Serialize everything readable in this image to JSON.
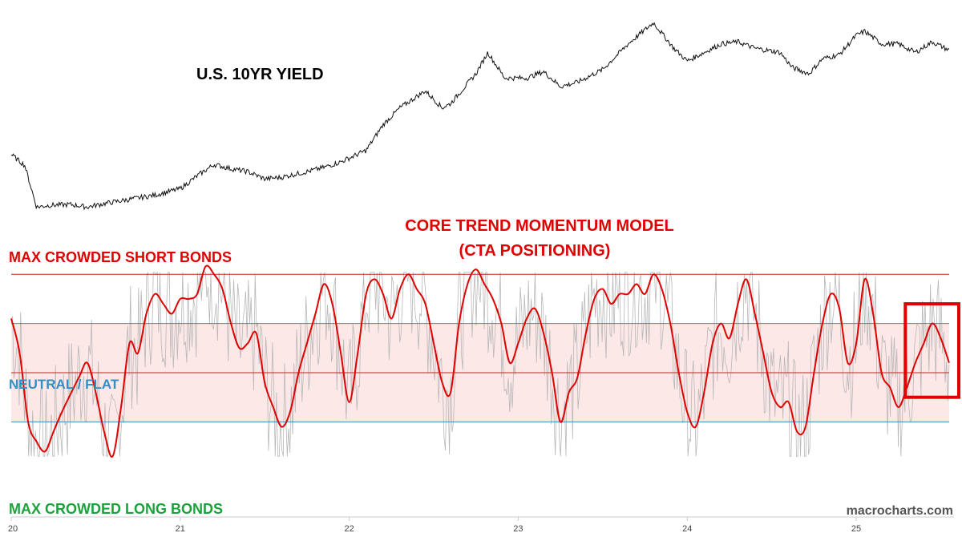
{
  "chart_data": {
    "type": "line",
    "watermark": "macrocharts.com",
    "colors": {
      "yield": "#111111",
      "model": "#e00000",
      "raw": "#b8b8b8",
      "band_fill": "#fde8e8",
      "red_rule": "#cc2222",
      "blue_rule": "#3b8bb8",
      "short_label": "#e00000",
      "neutral_label": "#2f8fc8",
      "long_label": "#1aa33a",
      "highlight": "#e00000"
    },
    "x_axis": {
      "min": 20.0,
      "max": 25.55,
      "ticks": [
        {
          "value": 20,
          "label": "20"
        },
        {
          "value": 21,
          "label": "21"
        },
        {
          "value": 22,
          "label": "22"
        },
        {
          "value": 23,
          "label": "23"
        },
        {
          "value": 24,
          "label": "24"
        },
        {
          "value": 25,
          "label": "25"
        }
      ]
    },
    "yield_panel": {
      "title": "U.S. 10YR YIELD",
      "ylim": [
        0.4,
        5.2
      ],
      "points": [
        [
          20.0,
          1.85
        ],
        [
          20.08,
          1.6
        ],
        [
          20.15,
          0.62
        ],
        [
          20.22,
          0.66
        ],
        [
          20.35,
          0.68
        ],
        [
          20.45,
          0.62
        ],
        [
          20.55,
          0.7
        ],
        [
          20.7,
          0.8
        ],
        [
          20.85,
          0.9
        ],
        [
          21.0,
          1.05
        ],
        [
          21.1,
          1.35
        ],
        [
          21.2,
          1.62
        ],
        [
          21.3,
          1.52
        ],
        [
          21.4,
          1.45
        ],
        [
          21.5,
          1.28
        ],
        [
          21.6,
          1.32
        ],
        [
          21.75,
          1.45
        ],
        [
          21.85,
          1.55
        ],
        [
          21.95,
          1.68
        ],
        [
          22.1,
          1.95
        ],
        [
          22.2,
          2.55
        ],
        [
          22.3,
          2.95
        ],
        [
          22.45,
          3.35
        ],
        [
          22.55,
          2.95
        ],
        [
          22.6,
          3.05
        ],
        [
          22.75,
          3.75
        ],
        [
          22.82,
          4.25
        ],
        [
          22.92,
          3.65
        ],
        [
          23.05,
          3.65
        ],
        [
          23.15,
          3.8
        ],
        [
          23.25,
          3.45
        ],
        [
          23.35,
          3.55
        ],
        [
          23.5,
          3.85
        ],
        [
          23.65,
          4.45
        ],
        [
          23.8,
          4.95
        ],
        [
          23.92,
          4.35
        ],
        [
          24.0,
          4.05
        ],
        [
          24.1,
          4.25
        ],
        [
          24.2,
          4.45
        ],
        [
          24.3,
          4.5
        ],
        [
          24.4,
          4.35
        ],
        [
          24.55,
          4.25
        ],
        [
          24.62,
          3.9
        ],
        [
          24.72,
          3.75
        ],
        [
          24.8,
          4.1
        ],
        [
          24.9,
          4.2
        ],
        [
          25.0,
          4.65
        ],
        [
          25.05,
          4.75
        ],
        [
          25.15,
          4.45
        ],
        [
          25.25,
          4.45
        ],
        [
          25.35,
          4.25
        ],
        [
          25.45,
          4.5
        ],
        [
          25.55,
          4.3
        ]
      ]
    },
    "model_panel": {
      "title_line1": "CORE TREND MOMENTUM MODEL",
      "title_line2": "(CTA POSITIONING)",
      "label_short": "MAX CROWDED SHORT BONDS",
      "label_neutral": "NEUTRAL / FLAT",
      "label_long": "MAX CROWDED LONG BONDS",
      "ylim": [
        -1.1,
        1.1
      ],
      "levels": {
        "max_short": 1.0,
        "upper": 0.5,
        "neutral": 0.0,
        "lower": -0.5
      },
      "points": [
        [
          20.0,
          0.55
        ],
        [
          20.05,
          0.2
        ],
        [
          20.1,
          -0.5
        ],
        [
          20.15,
          -0.7
        ],
        [
          20.2,
          -0.8
        ],
        [
          20.25,
          -0.6
        ],
        [
          20.3,
          -0.4
        ],
        [
          20.4,
          -0.05
        ],
        [
          20.45,
          0.1
        ],
        [
          20.5,
          -0.2
        ],
        [
          20.55,
          -0.6
        ],
        [
          20.6,
          -0.85
        ],
        [
          20.65,
          -0.35
        ],
        [
          20.7,
          0.3
        ],
        [
          20.75,
          0.2
        ],
        [
          20.8,
          0.6
        ],
        [
          20.85,
          0.8
        ],
        [
          20.9,
          0.7
        ],
        [
          20.95,
          0.6
        ],
        [
          21.0,
          0.75
        ],
        [
          21.05,
          0.75
        ],
        [
          21.1,
          0.8
        ],
        [
          21.15,
          1.08
        ],
        [
          21.2,
          1.0
        ],
        [
          21.25,
          0.85
        ],
        [
          21.3,
          0.5
        ],
        [
          21.35,
          0.25
        ],
        [
          21.4,
          0.3
        ],
        [
          21.45,
          0.4
        ],
        [
          21.5,
          -0.1
        ],
        [
          21.55,
          -0.35
        ],
        [
          21.6,
          -0.55
        ],
        [
          21.65,
          -0.4
        ],
        [
          21.7,
          0.0
        ],
        [
          21.75,
          0.3
        ],
        [
          21.8,
          0.6
        ],
        [
          21.85,
          0.9
        ],
        [
          21.9,
          0.7
        ],
        [
          21.95,
          0.2
        ],
        [
          22.0,
          -0.3
        ],
        [
          22.05,
          0.2
        ],
        [
          22.1,
          0.8
        ],
        [
          22.15,
          0.95
        ],
        [
          22.2,
          0.8
        ],
        [
          22.25,
          0.55
        ],
        [
          22.3,
          0.85
        ],
        [
          22.35,
          1.0
        ],
        [
          22.4,
          0.85
        ],
        [
          22.45,
          0.7
        ],
        [
          22.5,
          0.3
        ],
        [
          22.55,
          -0.1
        ],
        [
          22.6,
          -0.2
        ],
        [
          22.65,
          0.5
        ],
        [
          22.7,
          0.9
        ],
        [
          22.75,
          1.05
        ],
        [
          22.8,
          0.9
        ],
        [
          22.85,
          0.75
        ],
        [
          22.9,
          0.5
        ],
        [
          22.95,
          0.1
        ],
        [
          23.0,
          0.3
        ],
        [
          23.05,
          0.55
        ],
        [
          23.1,
          0.65
        ],
        [
          23.15,
          0.4
        ],
        [
          23.2,
          0.0
        ],
        [
          23.25,
          -0.5
        ],
        [
          23.3,
          -0.2
        ],
        [
          23.35,
          -0.05
        ],
        [
          23.4,
          0.4
        ],
        [
          23.45,
          0.75
        ],
        [
          23.5,
          0.85
        ],
        [
          23.55,
          0.7
        ],
        [
          23.6,
          0.8
        ],
        [
          23.65,
          0.8
        ],
        [
          23.7,
          0.9
        ],
        [
          23.75,
          0.8
        ],
        [
          23.8,
          1.0
        ],
        [
          23.85,
          0.85
        ],
        [
          23.9,
          0.5
        ],
        [
          23.95,
          0.0
        ],
        [
          24.0,
          -0.4
        ],
        [
          24.05,
          -0.55
        ],
        [
          24.1,
          -0.2
        ],
        [
          24.15,
          0.3
        ],
        [
          24.2,
          0.5
        ],
        [
          24.25,
          0.35
        ],
        [
          24.3,
          0.7
        ],
        [
          24.35,
          0.95
        ],
        [
          24.4,
          0.6
        ],
        [
          24.45,
          0.2
        ],
        [
          24.5,
          -0.2
        ],
        [
          24.55,
          -0.35
        ],
        [
          24.6,
          -0.3
        ],
        [
          24.65,
          -0.6
        ],
        [
          24.7,
          -0.55
        ],
        [
          24.75,
          0.0
        ],
        [
          24.8,
          0.5
        ],
        [
          24.85,
          0.8
        ],
        [
          24.9,
          0.65
        ],
        [
          24.95,
          0.1
        ],
        [
          25.0,
          0.3
        ],
        [
          25.05,
          0.95
        ],
        [
          25.1,
          0.6
        ],
        [
          25.15,
          0.0
        ],
        [
          25.2,
          -0.15
        ],
        [
          25.25,
          -0.35
        ],
        [
          25.3,
          -0.15
        ],
        [
          25.35,
          0.1
        ],
        [
          25.4,
          0.3
        ],
        [
          25.45,
          0.5
        ],
        [
          25.5,
          0.35
        ],
        [
          25.55,
          0.1
        ]
      ]
    },
    "highlight_box": {
      "x_from": 25.3,
      "x_to": 25.55,
      "y_from": -0.25,
      "y_to": 0.7
    }
  }
}
